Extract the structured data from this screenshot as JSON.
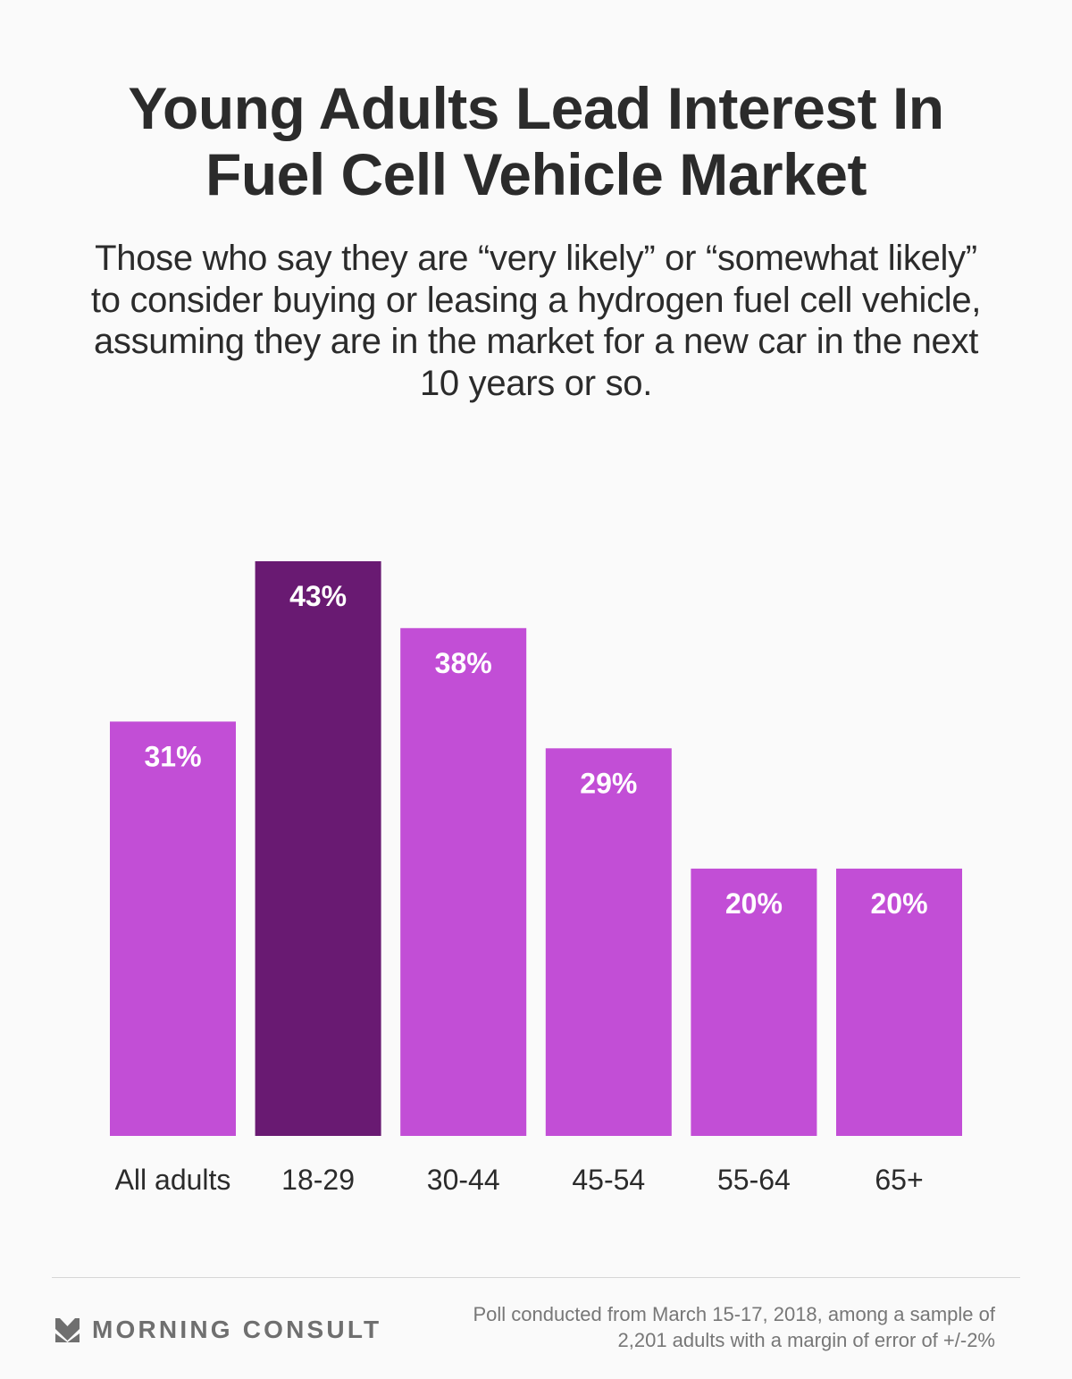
{
  "colors": {
    "background": "#fafafa",
    "bar_default": "#c24ed6",
    "bar_highlight": "#691a72",
    "text_dark": "#2b2b2b",
    "text_footer": "#777777",
    "brand_gray": "#6f6f6f"
  },
  "header": {
    "title_line1": "Young Adults Lead Interest In",
    "title_line2": "Fuel Cell Vehicle Market",
    "subtitle": "Those who say they are “very likely” or “somewhat likely” to consider buying or leasing a hydrogen fuel cell vehicle, assuming they are in the market for a new car in the next 10 years or so."
  },
  "chart_data": {
    "type": "bar",
    "title": "Young Adults Lead Interest In Fuel Cell Vehicle Market",
    "subtitle": "Those who say they are “very likely” or “somewhat likely” to consider buying or leasing a hydrogen fuel cell vehicle, assuming they are in the market for a new car in the next 10 years or so.",
    "xlabel": "",
    "ylabel": "",
    "categories": [
      "All adults",
      "18-29",
      "30-44",
      "45-54",
      "55-64",
      "65+"
    ],
    "values": [
      31,
      43,
      38,
      29,
      20,
      20
    ],
    "data_labels": [
      "31%",
      "43%",
      "38%",
      "29%",
      "20%",
      "20%"
    ],
    "highlight_index": 1,
    "unit": "%",
    "ylim": [
      0,
      43
    ],
    "grid": false,
    "axis_visible": false
  },
  "footer": {
    "brand": "MORNING CONSULT",
    "brand_icon": "morning-consult-chevron-logo",
    "source_line1": "Poll conducted from March 15-17, 2018, among a sample of",
    "source_line2": "2,201 adults with a margin of error of +/-2%"
  }
}
